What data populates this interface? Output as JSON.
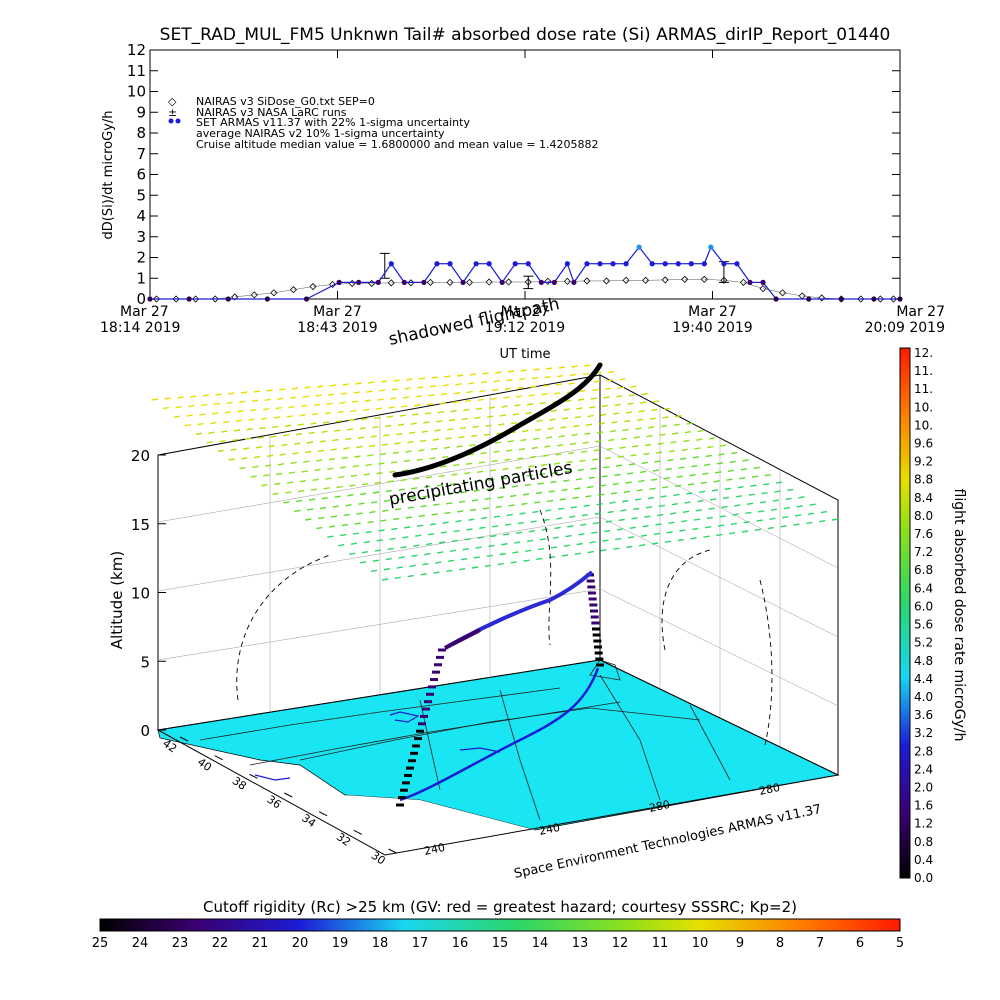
{
  "title": "SET_RAD_MUL_FM5 Unknwn Tail#  absorbed dose rate (Si) ARMAS_dirIP_Report_01440",
  "chart_data": [
    {
      "type": "scatter",
      "ylabel": "dD(Si)/dt microGy/h",
      "xlabel": "UT time",
      "ylim": [
        0,
        12
      ],
      "yticks": [
        "0",
        "1",
        "2",
        "3",
        "4",
        "5",
        "6",
        "7",
        "8",
        "9",
        "10",
        "11",
        "12"
      ],
      "xticks": [
        {
          "top": "Mar 27",
          "bottom": "18:14 2019"
        },
        {
          "top": "Mar 27",
          "bottom": "18:43 2019"
        },
        {
          "top": "Mar 27",
          "bottom": "19:12 2019"
        },
        {
          "top": "Mar 27",
          "bottom": "19:40 2019"
        },
        {
          "top": "Mar 27",
          "bottom": "20:09 2019"
        }
      ],
      "x_start": "18:14",
      "x_end": "20:09",
      "legend": [
        {
          "symbol": "◇",
          "label": "NAIRAS v3 SiDose_G0.txt SEP=0",
          "color": "#000000"
        },
        {
          "symbol": "±",
          "label": "NAIRAS v3 NASA LaRC runs",
          "color": "#000000"
        },
        {
          "symbol": "●",
          "label": "SET ARMAS v11.37 with 22% 1-sigma uncertainty",
          "color": "#1c1cd6"
        },
        {
          "symbol": "",
          "label": "average NAIRAS v2 10% 1-sigma uncertainty",
          "color": "#000000"
        },
        {
          "symbol": "",
          "label": "Cruise altitude median value = 1.6800000 and mean value = 1.4205882",
          "color": "#000000"
        }
      ],
      "series": [
        {
          "name": "NAIRAS v3 SiDose_G0.txt SEP=0",
          "color": "#000000",
          "marker": "diamond",
          "points": [
            [
              "18:15",
              0.0
            ],
            [
              "18:18",
              0.0
            ],
            [
              "18:21",
              0.0
            ],
            [
              "18:24",
              0.0
            ],
            [
              "18:27",
              0.1
            ],
            [
              "18:30",
              0.2
            ],
            [
              "18:33",
              0.3
            ],
            [
              "18:36",
              0.45
            ],
            [
              "18:39",
              0.6
            ],
            [
              "18:42",
              0.7
            ],
            [
              "18:45",
              0.75
            ],
            [
              "18:48",
              0.75
            ],
            [
              "18:51",
              0.78
            ],
            [
              "18:54",
              0.78
            ],
            [
              "18:57",
              0.8
            ],
            [
              "19:00",
              0.8
            ],
            [
              "19:03",
              0.8
            ],
            [
              "19:06",
              0.82
            ],
            [
              "19:09",
              0.82
            ],
            [
              "19:12",
              0.82
            ],
            [
              "19:15",
              0.85
            ],
            [
              "19:18",
              0.85
            ],
            [
              "19:21",
              0.87
            ],
            [
              "19:24",
              0.87
            ],
            [
              "19:27",
              0.9
            ],
            [
              "19:30",
              0.9
            ],
            [
              "19:33",
              0.92
            ],
            [
              "19:36",
              0.95
            ],
            [
              "19:39",
              0.95
            ],
            [
              "19:42",
              0.9
            ],
            [
              "19:45",
              0.8
            ],
            [
              "19:48",
              0.5
            ],
            [
              "19:51",
              0.3
            ],
            [
              "19:54",
              0.15
            ],
            [
              "19:57",
              0.05
            ],
            [
              "20:00",
              0.0
            ],
            [
              "20:03",
              0.0
            ],
            [
              "20:06",
              0.0
            ],
            [
              "20:08",
              0.0
            ]
          ]
        },
        {
          "name": "NAIRAS v3 NASA LaRC runs",
          "color": "#000000",
          "marker": "errorbar",
          "points": [
            [
              "18:50",
              1.6,
              0.6
            ],
            [
              "19:12",
              0.8,
              0.3
            ],
            [
              "19:42",
              1.3,
              0.5
            ]
          ]
        },
        {
          "name": "SET ARMAS v11.37 with 22% 1-sigma uncertainty",
          "color": "#1c1cd6",
          "marker": "dot",
          "points": [
            [
              "18:14",
              0.0
            ],
            [
              "18:20",
              0.0
            ],
            [
              "18:26",
              0.0
            ],
            [
              "18:32",
              0.0
            ],
            [
              "18:38",
              0.0
            ],
            [
              "18:43",
              0.8
            ],
            [
              "18:46",
              0.8
            ],
            [
              "18:49",
              0.8
            ],
            [
              "18:51",
              1.7
            ],
            [
              "18:53",
              0.8
            ],
            [
              "18:56",
              0.8
            ],
            [
              "18:58",
              1.7
            ],
            [
              "19:00",
              1.7
            ],
            [
              "19:02",
              0.8
            ],
            [
              "19:04",
              1.7
            ],
            [
              "19:06",
              1.7
            ],
            [
              "19:08",
              0.8
            ],
            [
              "19:10",
              1.7
            ],
            [
              "19:12",
              1.7
            ],
            [
              "19:14",
              0.8
            ],
            [
              "19:16",
              0.8
            ],
            [
              "19:18",
              1.7
            ],
            [
              "19:19",
              0.8
            ],
            [
              "19:21",
              1.7
            ],
            [
              "19:23",
              1.7
            ],
            [
              "19:25",
              1.7
            ],
            [
              "19:27",
              1.7
            ],
            [
              "19:29",
              2.5
            ],
            [
              "19:31",
              1.7
            ],
            [
              "19:33",
              1.7
            ],
            [
              "19:35",
              1.7
            ],
            [
              "19:37",
              1.7
            ],
            [
              "19:39",
              1.7
            ],
            [
              "19:40",
              2.5
            ],
            [
              "19:42",
              1.7
            ],
            [
              "19:44",
              1.7
            ],
            [
              "19:46",
              0.8
            ],
            [
              "19:48",
              0.8
            ],
            [
              "19:50",
              0.0
            ],
            [
              "19:55",
              0.0
            ],
            [
              "20:00",
              0.0
            ],
            [
              "20:05",
              0.0
            ],
            [
              "20:09",
              0.0
            ]
          ]
        }
      ]
    },
    {
      "type": "other",
      "description_labels": {
        "shadow_label": "shadowed flightpath",
        "particles_label": "precipitating particles",
        "zlabel": "Altitude (km)",
        "credit": "Space Environment Technologies ARMAS v11.37"
      },
      "zticks": [
        "0",
        "5",
        "10",
        "15",
        "20"
      ],
      "lat_ticks": [
        "42",
        "40",
        "38",
        "36",
        "34",
        "32",
        "30"
      ],
      "lon_ticks": [
        "240",
        "240",
        "280",
        "280"
      ],
      "colorbar": {
        "title": "flight absorbed dose rate microGy/h",
        "ticks": [
          "12.",
          "11.",
          "11.",
          "10.",
          "10.",
          "9.6",
          "9.2",
          "8.8",
          "8.4",
          "8.0",
          "7.6",
          "7.2",
          "6.8",
          "6.4",
          "6.0",
          "5.6",
          "5.2",
          "4.8",
          "4.4",
          "4.0",
          "3.6",
          "3.2",
          "2.8",
          "2.4",
          "2.0",
          "1.6",
          "1.2",
          "0.8",
          "0.4",
          "0.0"
        ]
      },
      "cutoff_bar": {
        "title": "Cutoff rigidity (Rc) >25 km (GV: red = greatest hazard; courtesy SSSRC; Kp=2)",
        "ticks": [
          "25",
          "24",
          "23",
          "22",
          "21",
          "20",
          "19",
          "18",
          "17",
          "16",
          "15",
          "14",
          "13",
          "12",
          "11",
          "10",
          "9",
          "8",
          "7",
          "6",
          "5"
        ]
      }
    }
  ]
}
